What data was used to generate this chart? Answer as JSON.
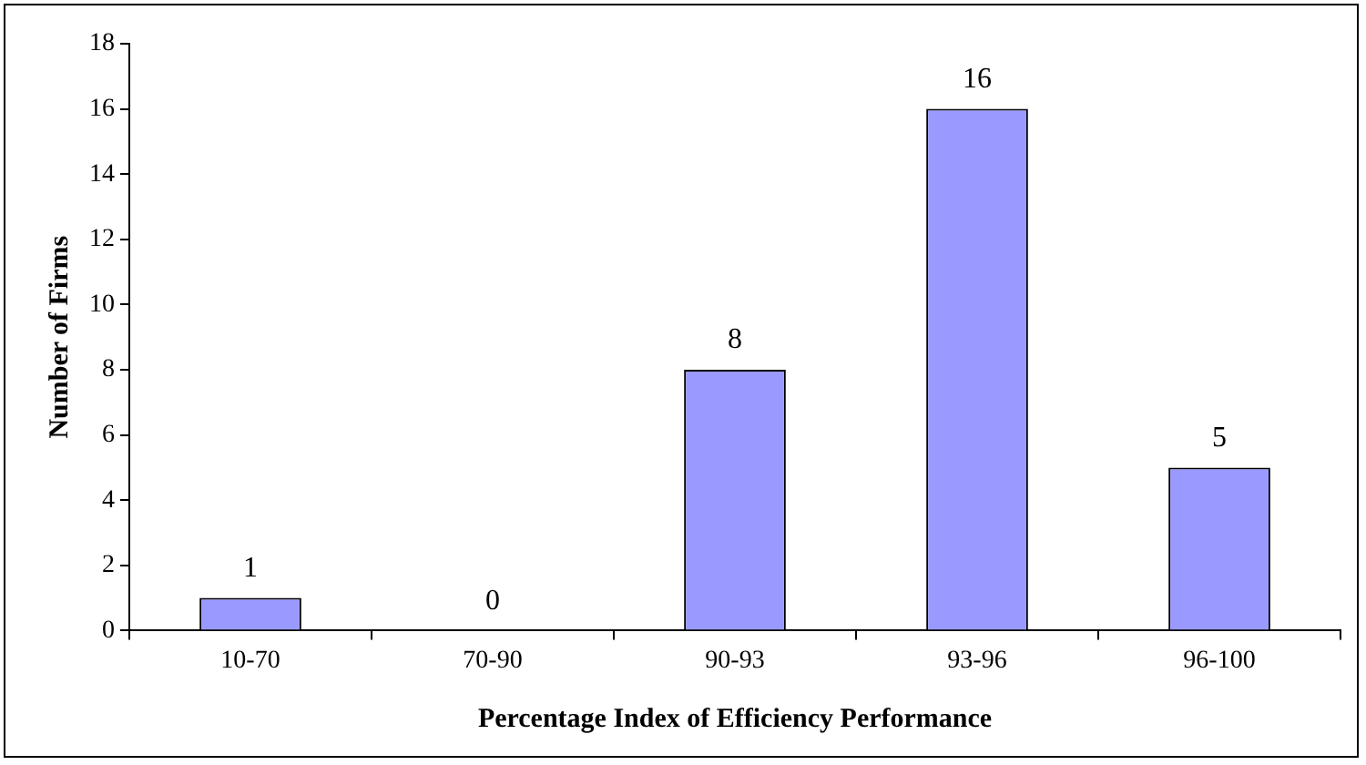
{
  "chart_data": {
    "type": "bar",
    "xlabel": "Percentage Index of Efficiency Performance",
    "ylabel": "Number of Firms",
    "categories": [
      "10-70",
      "70-90",
      "90-93",
      "93-96",
      "96-100"
    ],
    "values": [
      1,
      0,
      8,
      16,
      5
    ],
    "color": "#9999ff",
    "ylim": [
      0,
      18
    ],
    "yticks": [
      0,
      2,
      4,
      6,
      8,
      10,
      12,
      14,
      16,
      18
    ],
    "grid": false,
    "legend": false,
    "data_labels": true
  }
}
